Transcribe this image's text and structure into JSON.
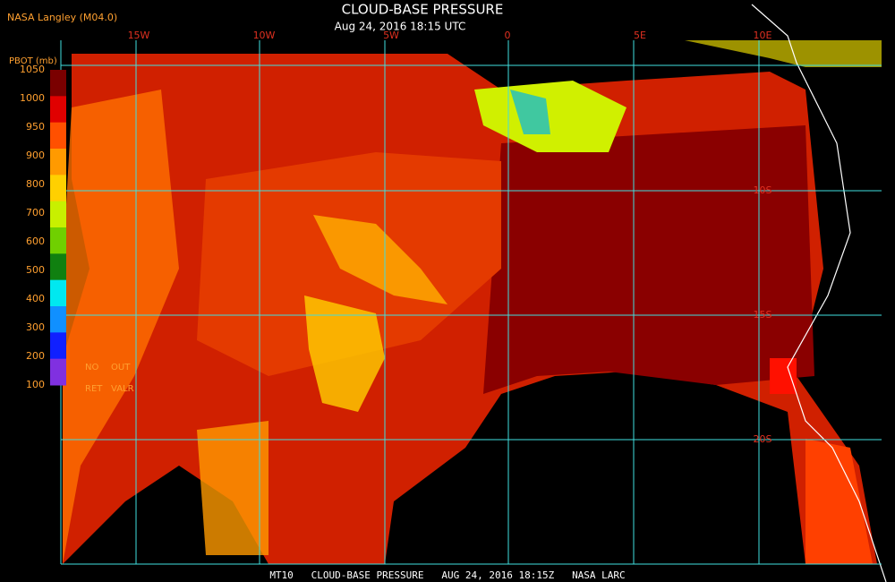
{
  "header": {
    "source": "NASA Langley (M04.0)",
    "title": "CLOUD-BASE PRESSURE",
    "subtitle": "Aug 24, 2016 18:15 UTC"
  },
  "legend": {
    "title": "PBOT (mb)",
    "ticks": [
      1050,
      1000,
      950,
      900,
      800,
      700,
      600,
      500,
      400,
      300,
      200,
      100
    ],
    "colors": [
      "#7a0000",
      "#e00000",
      "#ff5000",
      "#ff9a00",
      "#ffd000",
      "#c8f000",
      "#70d000",
      "#108010",
      "#00e8f0",
      "#1090ff",
      "#1020ff",
      "#8030e0"
    ],
    "notes": [
      "NO",
      "OUT",
      "RET",
      "VALR"
    ]
  },
  "grid": {
    "lon_labels": [
      "15W",
      "10W",
      "5W",
      "0",
      "5E",
      "10E"
    ],
    "lat_labels": [
      "10S",
      "15S",
      "20S"
    ]
  },
  "footer": "MT10   CLOUD-BASE PRESSURE   AUG 24, 2016 18:15Z   NASA LARC"
}
